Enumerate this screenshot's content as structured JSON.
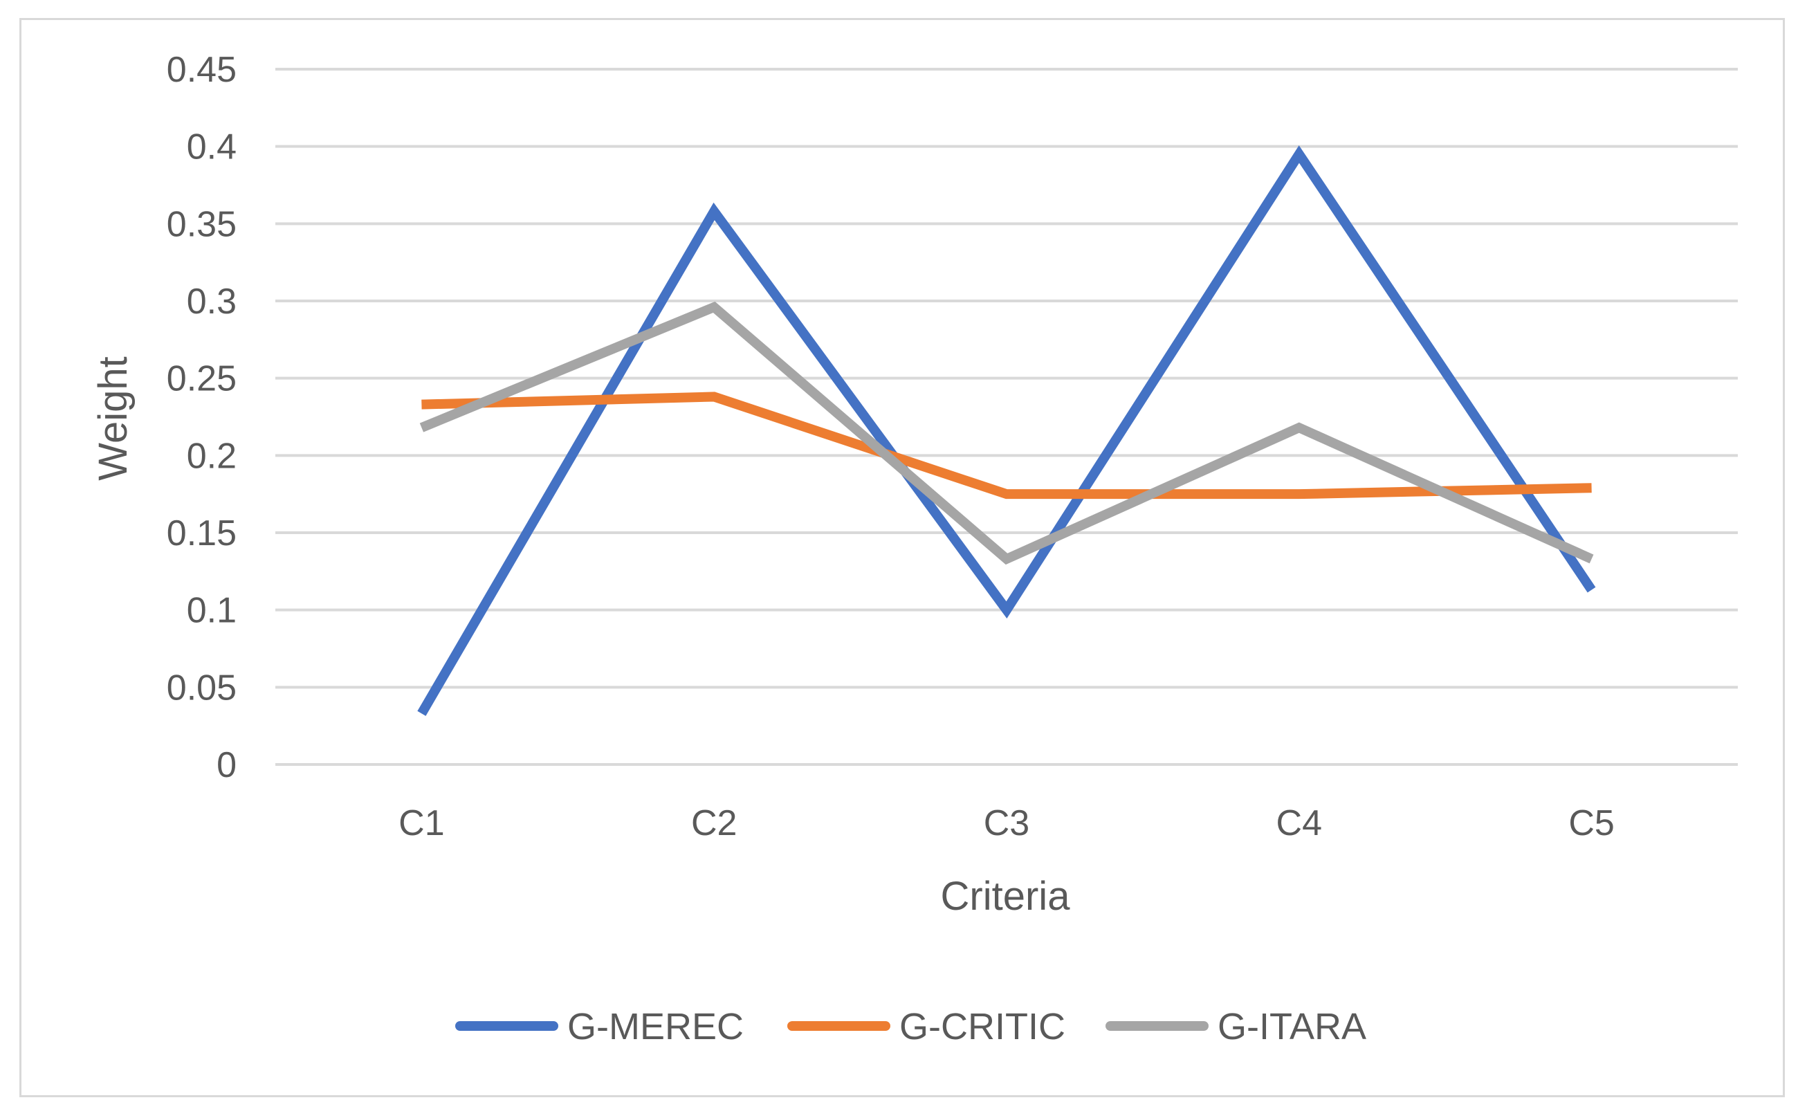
{
  "chart_data": {
    "type": "line",
    "title": "",
    "xlabel": "Criteria",
    "ylabel": "Weight",
    "categories": [
      "C1",
      "C2",
      "C3",
      "C4",
      "C5"
    ],
    "ylim": [
      0,
      0.45
    ],
    "yticks": [
      0,
      0.05,
      0.1,
      0.15,
      0.2,
      0.25,
      0.3,
      0.35,
      0.4,
      0.45
    ],
    "ytick_labels": [
      "0",
      "0.05",
      "0.1",
      "0.15",
      "0.2",
      "0.25",
      "0.3",
      "0.35",
      "0.4",
      "0.45"
    ],
    "grid": true,
    "legend_position": "bottom",
    "series": [
      {
        "name": "G-MEREC",
        "color": "#4472c4",
        "values": [
          0.033,
          0.358,
          0.1,
          0.395,
          0.113
        ]
      },
      {
        "name": "G-CRITIC",
        "color": "#ed7d31",
        "values": [
          0.233,
          0.238,
          0.175,
          0.175,
          0.179
        ]
      },
      {
        "name": "G-ITARA",
        "color": "#a5a5a5",
        "values": [
          0.218,
          0.296,
          0.133,
          0.218,
          0.133
        ]
      }
    ]
  }
}
